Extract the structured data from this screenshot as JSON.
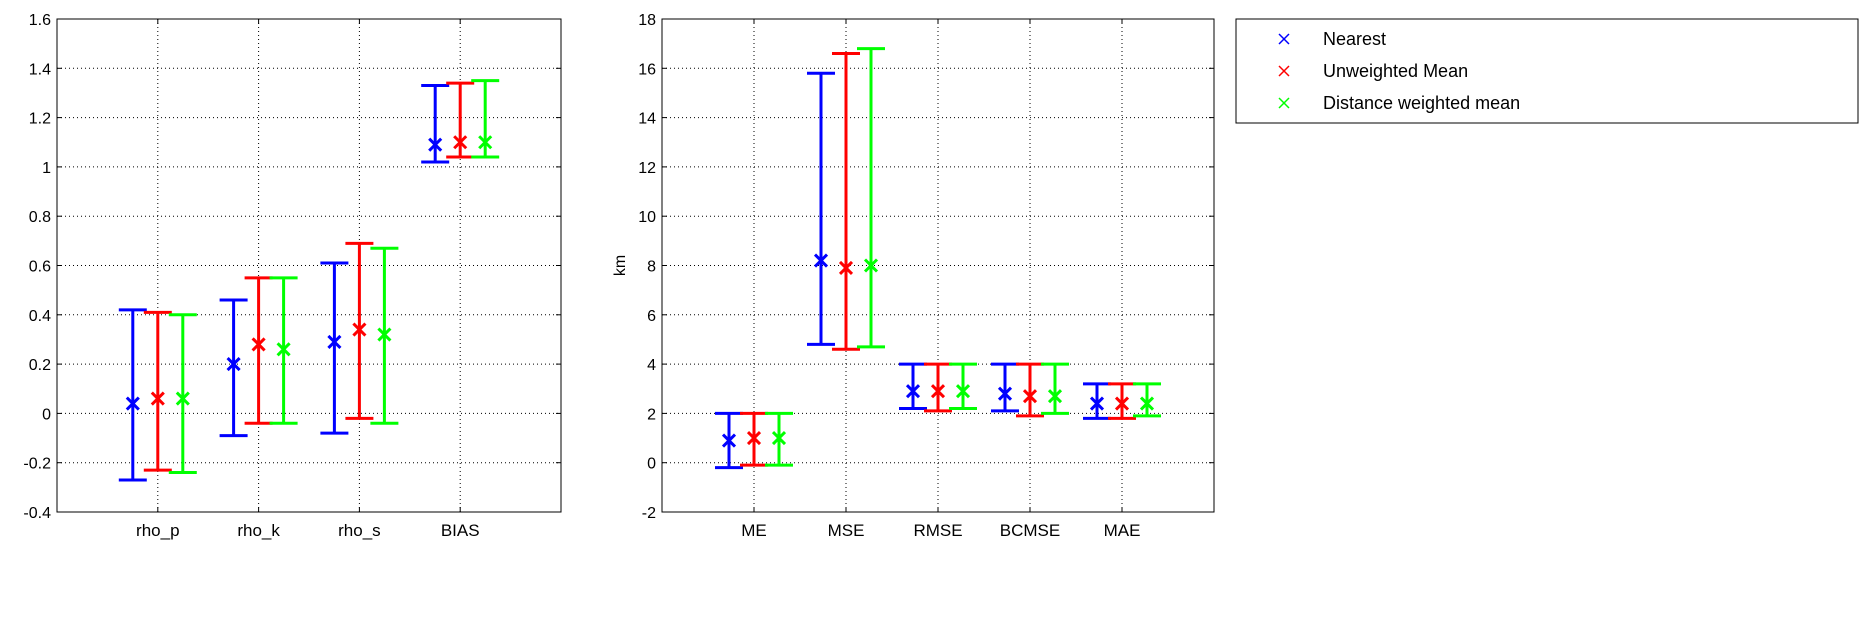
{
  "chart_data": [
    {
      "type": "errorbar",
      "categories": [
        "rho_p",
        "rho_k",
        "rho_s",
        "BIAS"
      ],
      "ylim": [
        -0.4,
        1.6
      ],
      "yticks": [
        -0.4,
        -0.2,
        0,
        0.2,
        0.4,
        0.6,
        0.8,
        1,
        1.2,
        1.4,
        1.6
      ],
      "ytick_labels": [
        "-0.4",
        "-0.2",
        "0",
        "0.2",
        "0.4",
        "0.6",
        "0.8",
        "1",
        "1.2",
        "1.4",
        "1.6"
      ],
      "xlabel": "",
      "ylabel": "",
      "grid": true,
      "series": [
        {
          "name": "Nearest",
          "color": "#0000ff",
          "values": [
            0.04,
            0.2,
            0.29,
            1.09
          ],
          "lower": [
            -0.27,
            -0.09,
            -0.08,
            1.02
          ],
          "upper": [
            0.42,
            0.46,
            0.61,
            1.33
          ]
        },
        {
          "name": "Unweighted Mean",
          "color": "#ff0000",
          "values": [
            0.06,
            0.28,
            0.34,
            1.1
          ],
          "lower": [
            -0.23,
            -0.04,
            -0.02,
            1.04
          ],
          "upper": [
            0.41,
            0.55,
            0.69,
            1.34
          ]
        },
        {
          "name": "Distance weighted mean",
          "color": "#00ff00",
          "values": [
            0.06,
            0.26,
            0.32,
            1.1
          ],
          "lower": [
            -0.24,
            -0.04,
            -0.04,
            1.04
          ],
          "upper": [
            0.4,
            0.55,
            0.67,
            1.35
          ]
        }
      ]
    },
    {
      "type": "errorbar",
      "categories": [
        "ME",
        "MSE",
        "RMSE",
        "BCMSE",
        "MAE"
      ],
      "ylim": [
        -2,
        18
      ],
      "yticks": [
        -2,
        0,
        2,
        4,
        6,
        8,
        10,
        12,
        14,
        16,
        18
      ],
      "ytick_labels": [
        "-2",
        "0",
        "2",
        "4",
        "6",
        "8",
        "10",
        "12",
        "14",
        "16",
        "18"
      ],
      "xlabel": "",
      "ylabel": "km",
      "grid": true,
      "series": [
        {
          "name": "Nearest",
          "color": "#0000ff",
          "values": [
            0.9,
            8.2,
            2.9,
            2.8,
            2.4
          ],
          "lower": [
            -0.2,
            4.8,
            2.2,
            2.1,
            1.8
          ],
          "upper": [
            2.0,
            15.8,
            4.0,
            4.0,
            3.2
          ]
        },
        {
          "name": "Unweighted Mean",
          "color": "#ff0000",
          "values": [
            1.0,
            7.9,
            2.9,
            2.7,
            2.4
          ],
          "lower": [
            -0.1,
            4.6,
            2.1,
            1.9,
            1.8
          ],
          "upper": [
            2.0,
            16.6,
            4.0,
            4.0,
            3.2
          ]
        },
        {
          "name": "Distance weighted mean",
          "color": "#00ff00",
          "values": [
            1.0,
            8.0,
            2.9,
            2.7,
            2.4
          ],
          "lower": [
            -0.1,
            4.7,
            2.2,
            2.0,
            1.9
          ],
          "upper": [
            2.0,
            16.8,
            4.0,
            4.0,
            3.2
          ]
        }
      ]
    }
  ],
  "legend": {
    "placement": "right",
    "entries": [
      "Nearest",
      "Unweighted Mean",
      "Distance weighted mean"
    ]
  }
}
